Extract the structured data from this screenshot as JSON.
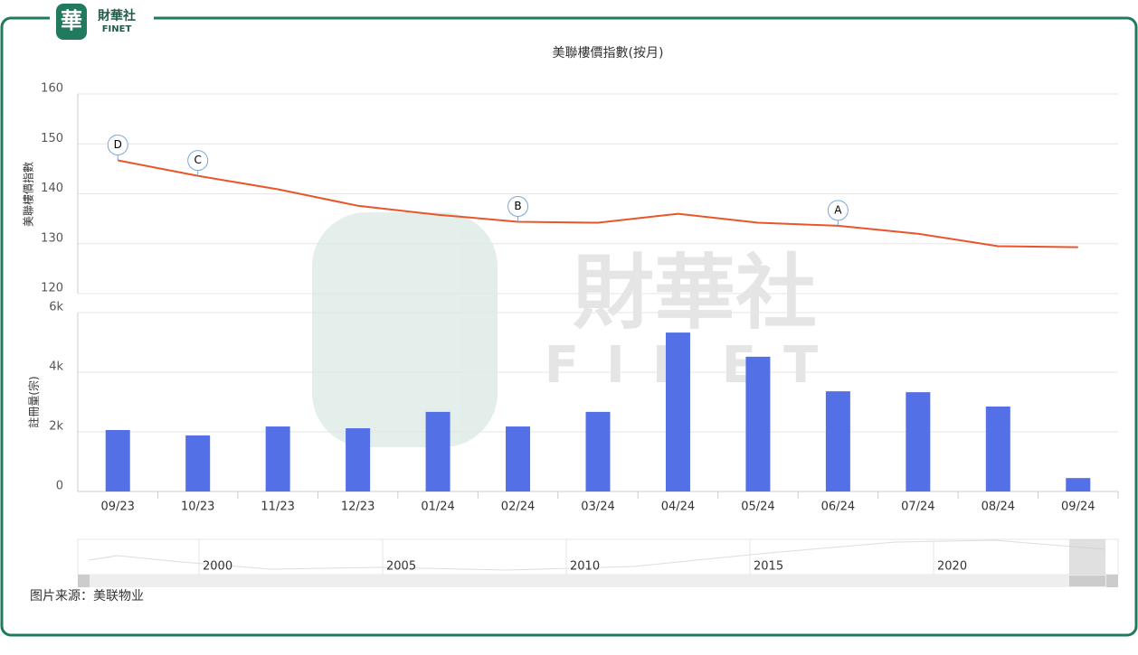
{
  "logo": {
    "name": "財華社",
    "sub": "FINET"
  },
  "source": "图片来源：美联物业",
  "navigator_labels": [
    "2000",
    "2005",
    "2010",
    "2015",
    "2020"
  ],
  "chart_data": [
    {
      "type": "line",
      "title": "美聯樓價指數(按月)",
      "ylabel": "美聯樓價指數",
      "color": "#e8562a",
      "categories": [
        "09/23",
        "10/23",
        "11/23",
        "12/23",
        "01/24",
        "02/24",
        "03/24",
        "04/24",
        "05/24",
        "06/24",
        "07/24",
        "08/24",
        "09/24"
      ],
      "values": [
        146.7,
        143.6,
        140.9,
        137.6,
        135.8,
        134.4,
        134.2,
        136.0,
        134.2,
        133.6,
        132.0,
        129.5,
        129.3
      ],
      "ylim": [
        120,
        160
      ],
      "yticks": [
        120,
        130,
        140,
        150,
        160
      ],
      "grid": true,
      "annotations": [
        {
          "label": "D",
          "x": "09/23"
        },
        {
          "label": "C",
          "x": "10/23"
        },
        {
          "label": "B",
          "x": "02/24"
        },
        {
          "label": "A",
          "x": "06/24"
        }
      ]
    },
    {
      "type": "bar",
      "ylabel": "註冊量(宗)",
      "color": "#5470e6",
      "categories": [
        "09/23",
        "10/23",
        "11/23",
        "12/23",
        "01/24",
        "02/24",
        "03/24",
        "04/24",
        "05/24",
        "06/24",
        "07/24",
        "08/24",
        "09/24"
      ],
      "values": [
        2060,
        1880,
        2180,
        2120,
        2670,
        2180,
        2670,
        5330,
        4520,
        3360,
        3330,
        2850,
        450
      ],
      "ylim": [
        0,
        6000
      ],
      "yticks": [
        0,
        {
          "value": 2000,
          "label": "2k"
        },
        {
          "value": 4000,
          "label": "4k"
        },
        {
          "value": 6000,
          "label": "6k"
        }
      ],
      "grid": true
    }
  ]
}
